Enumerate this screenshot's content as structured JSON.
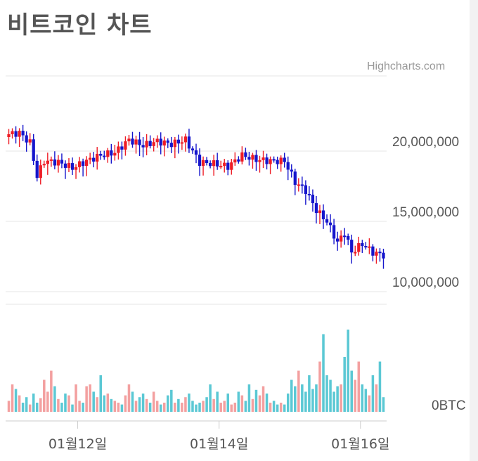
{
  "title": "비트코인 차트",
  "credits": "Highcharts.com",
  "chart_data": [
    {
      "type": "candlestick",
      "y_ticks": [
        {
          "value": 20000000,
          "label": "20,000,000"
        },
        {
          "value": 15000000,
          "label": "15,000,000"
        },
        {
          "value": 10000000,
          "label": "10,000,000"
        }
      ],
      "ylim": [
        9000000,
        25000000
      ],
      "colors": {
        "up": "#ee1c25",
        "down": "#1515cc"
      },
      "anchors": [
        [
          0,
          21200000
        ],
        [
          3,
          21300000
        ],
        [
          6,
          20600000
        ],
        [
          8,
          18200000
        ],
        [
          10,
          19300000
        ],
        [
          14,
          19200000
        ],
        [
          18,
          18800000
        ],
        [
          22,
          19300000
        ],
        [
          26,
          19700000
        ],
        [
          30,
          19900000
        ],
        [
          34,
          20800000
        ],
        [
          38,
          20400000
        ],
        [
          42,
          20700000
        ],
        [
          46,
          20500000
        ],
        [
          50,
          20800000
        ],
        [
          54,
          19200000
        ],
        [
          58,
          19100000
        ],
        [
          62,
          18900000
        ],
        [
          66,
          19700000
        ],
        [
          70,
          19400000
        ],
        [
          74,
          19300000
        ],
        [
          78,
          19300000
        ],
        [
          81,
          17800000
        ],
        [
          84,
          17200000
        ],
        [
          87,
          15800000
        ],
        [
          90,
          15000000
        ],
        [
          93,
          13500000
        ],
        [
          95,
          14200000
        ],
        [
          97,
          12800000
        ],
        [
          100,
          13400000
        ],
        [
          103,
          12800000
        ],
        [
          106,
          12600000
        ]
      ],
      "n": 107
    },
    {
      "type": "bar",
      "unit_label": "0BTC",
      "colors": {
        "up": "#f3a0a0",
        "down": "#5bc8d4"
      },
      "values": [
        0.12,
        0.3,
        0.25,
        0.18,
        0.1,
        0.16,
        0.08,
        0.2,
        0.1,
        0.15,
        0.35,
        0.22,
        0.45,
        0.28,
        0.14,
        0.1,
        0.2,
        0.18,
        0.08,
        0.3,
        0.12,
        0.1,
        0.28,
        0.3,
        0.22,
        0.16,
        0.4,
        0.18,
        0.2,
        0.14,
        0.12,
        0.1,
        0.08,
        0.18,
        0.3,
        0.22,
        0.12,
        0.16,
        0.2,
        0.14,
        0.1,
        0.22,
        0.12,
        0.08,
        0.1,
        0.18,
        0.24,
        0.1,
        0.14,
        0.1,
        0.16,
        0.2,
        0.12,
        0.08,
        0.1,
        0.12,
        0.16,
        0.3,
        0.14,
        0.22,
        0.1,
        0.12,
        0.2,
        0.08,
        0.1,
        0.22,
        0.18,
        0.12,
        0.3,
        0.14,
        0.24,
        0.18,
        0.28,
        0.2,
        0.1,
        0.12,
        0.08,
        0.1,
        0.08,
        0.2,
        0.35,
        0.28,
        0.45,
        0.3,
        0.22,
        0.4,
        0.25,
        0.3,
        0.55,
        0.85,
        0.4,
        0.35,
        0.22,
        0.28,
        0.3,
        0.6,
        0.9,
        0.45,
        0.35,
        0.55,
        0.3,
        0.25,
        0.18,
        0.4,
        0.3,
        0.55,
        0.16
      ]
    }
  ],
  "x_ticks": [
    {
      "index": 20,
      "label": "01월12일"
    },
    {
      "index": 60,
      "label": "01월14일"
    },
    {
      "index": 100,
      "label": "01월16일"
    }
  ]
}
